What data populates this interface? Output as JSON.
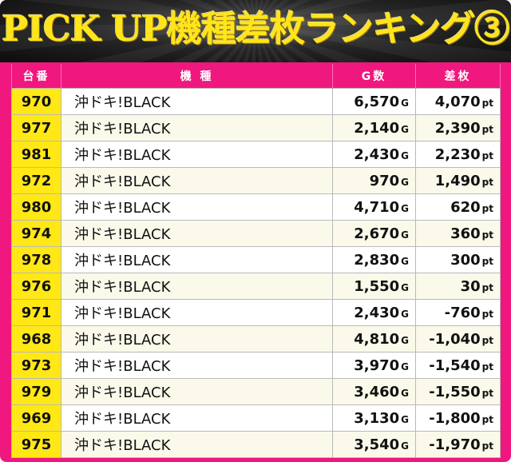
{
  "title": "PICK UP機種差枚ランキング③",
  "colors": {
    "accent": "#f0177e",
    "number_cell": "#ffe815",
    "title_text": "#ffe51a"
  },
  "headers": {
    "number": "台番",
    "machine": "機 種",
    "games": "G数",
    "difference": "差枚"
  },
  "units": {
    "games": "G",
    "difference": "pt"
  },
  "rows": [
    {
      "number": "970",
      "machine": "沖ドキ!BLACK",
      "games": "6,570",
      "difference": "4,070"
    },
    {
      "number": "977",
      "machine": "沖ドキ!BLACK",
      "games": "2,140",
      "difference": "2,390"
    },
    {
      "number": "981",
      "machine": "沖ドキ!BLACK",
      "games": "2,430",
      "difference": "2,230"
    },
    {
      "number": "972",
      "machine": "沖ドキ!BLACK",
      "games": "970",
      "difference": "1,490"
    },
    {
      "number": "980",
      "machine": "沖ドキ!BLACK",
      "games": "4,710",
      "difference": "620"
    },
    {
      "number": "974",
      "machine": "沖ドキ!BLACK",
      "games": "2,670",
      "difference": "360"
    },
    {
      "number": "978",
      "machine": "沖ドキ!BLACK",
      "games": "2,830",
      "difference": "300"
    },
    {
      "number": "976",
      "machine": "沖ドキ!BLACK",
      "games": "1,550",
      "difference": "30"
    },
    {
      "number": "971",
      "machine": "沖ドキ!BLACK",
      "games": "2,430",
      "difference": "-760"
    },
    {
      "number": "968",
      "machine": "沖ドキ!BLACK",
      "games": "4,810",
      "difference": "-1,040"
    },
    {
      "number": "973",
      "machine": "沖ドキ!BLACK",
      "games": "3,970",
      "difference": "-1,540"
    },
    {
      "number": "979",
      "machine": "沖ドキ!BLACK",
      "games": "3,460",
      "difference": "-1,550"
    },
    {
      "number": "969",
      "machine": "沖ドキ!BLACK",
      "games": "3,130",
      "difference": "-1,800"
    },
    {
      "number": "975",
      "machine": "沖ドキ!BLACK",
      "games": "3,540",
      "difference": "-1,970"
    }
  ]
}
